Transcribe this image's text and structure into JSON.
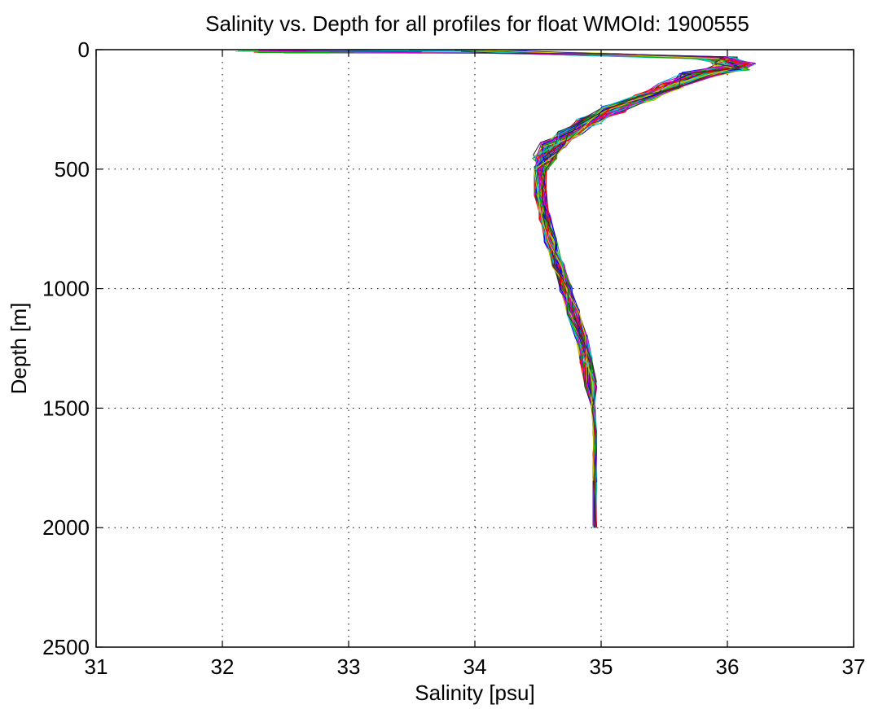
{
  "chart_data": {
    "type": "line",
    "title": "Salinity vs. Depth for all profiles for float WMOId: 1900555",
    "xlabel": "Salinity [psu]",
    "ylabel": "Depth [m]",
    "xlim": [
      31,
      37
    ],
    "ylim": [
      0,
      2500
    ],
    "y_reversed": true,
    "grid": true,
    "x_ticks": [
      31,
      32,
      33,
      34,
      35,
      36,
      37
    ],
    "y_ticks": [
      0,
      500,
      1000,
      1500,
      2000,
      2500
    ],
    "series_colors": [
      "#0000ff",
      "#00b000",
      "#ff0000",
      "#00c8c8",
      "#d000d0",
      "#c8c800",
      "#303030"
    ],
    "mean_profile": {
      "salinity": [
        34.2,
        35.0,
        35.9,
        36.05,
        36.0,
        35.8,
        35.55,
        35.35,
        35.1,
        34.9,
        34.75,
        34.62,
        34.55,
        34.52,
        34.52,
        34.55,
        34.6,
        34.66,
        34.72,
        34.78,
        34.84,
        34.88,
        34.92,
        34.94,
        34.95,
        34.95,
        34.95,
        34.95
      ],
      "depth": [
        10,
        20,
        35,
        60,
        80,
        100,
        150,
        200,
        250,
        300,
        350,
        400,
        450,
        500,
        600,
        700,
        800,
        900,
        1000,
        1100,
        1200,
        1300,
        1400,
        1500,
        1600,
        1700,
        1800,
        2000
      ]
    }
  }
}
